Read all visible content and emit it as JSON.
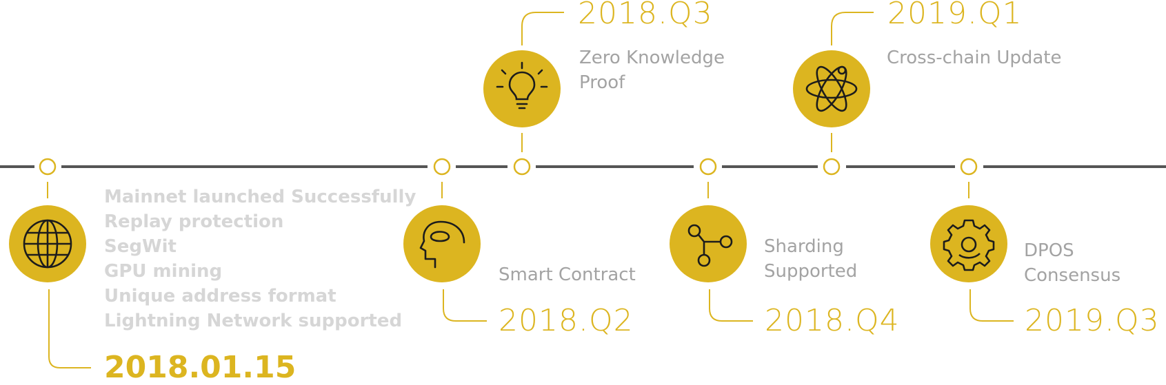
{
  "theme": {
    "accent": "#dcb520",
    "line": "#555555",
    "icon_stroke": "#1c1c1c",
    "muted_text": "#a3a3a3",
    "faint_text": "#d6d6d6"
  },
  "milestones": [
    {
      "date": "2018.01.15",
      "icon": "globe-icon",
      "items": [
        "Mainnet launched Successfully",
        "Replay protection",
        "SegWit",
        "GPU mining",
        "Unique address format",
        "Lightning Network supported"
      ]
    },
    {
      "date": "2018.Q2",
      "icon": "brain-head-icon",
      "lines": [
        "Smart Contract"
      ]
    },
    {
      "date": "2018.Q3",
      "icon": "lightbulb-icon",
      "lines": [
        "Zero Knowledge",
        "Proof"
      ]
    },
    {
      "date": "2018.Q4",
      "icon": "network-nodes-icon",
      "lines": [
        "Sharding",
        "Supported"
      ]
    },
    {
      "date": "2019.Q1",
      "icon": "atom-icon",
      "lines": [
        "Cross-chain Update"
      ]
    },
    {
      "date": "2019.Q3",
      "icon": "gear-icon",
      "lines": [
        "DPOS",
        "Consensus"
      ]
    }
  ]
}
